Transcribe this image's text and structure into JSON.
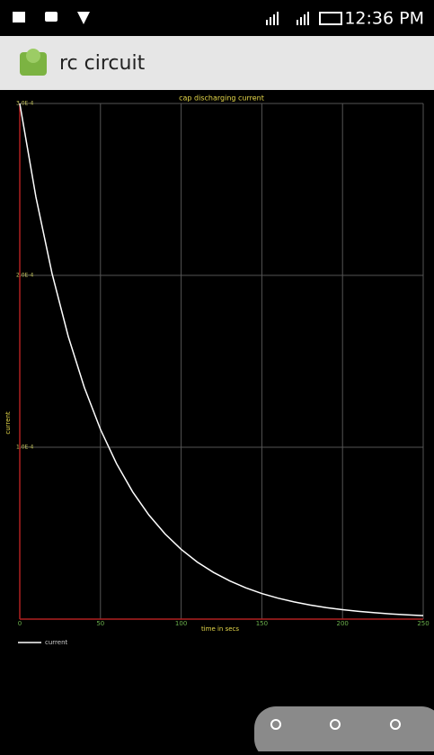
{
  "status_bar": {
    "time": "12:36 PM"
  },
  "app_bar": {
    "title": "rc circuit"
  },
  "chart_data": {
    "type": "line",
    "title": "cap discharging current",
    "x_label": "time in secs",
    "y_label": "current",
    "x": [
      0,
      10,
      20,
      30,
      40,
      50,
      60,
      70,
      80,
      90,
      100,
      110,
      120,
      130,
      140,
      150,
      160,
      170,
      180,
      190,
      200,
      210,
      220,
      230,
      240,
      250
    ],
    "series": [
      {
        "name": "current",
        "color": "#ffffff",
        "values": [
          0.0003,
          0.0002456,
          0.0002011,
          0.0001646,
          0.0001348,
          0.0001104,
          9.04e-05,
          7.4e-05,
          6.06e-05,
          4.96e-05,
          4.06e-05,
          3.32e-05,
          2.72e-05,
          2.23e-05,
          1.82e-05,
          1.49e-05,
          1.22e-05,
          1e-05,
          8.2e-06,
          6.7e-06,
          5.5e-06,
          4.5e-06,
          3.7e-06,
          3e-06,
          2.5e-06,
          2e-06
        ]
      }
    ],
    "xlim": [
      0,
      250
    ],
    "ylim": [
      0,
      0.0003
    ],
    "xticks": [
      0,
      50,
      100,
      150,
      200,
      250
    ],
    "yticks": [
      {
        "value": 0.0001,
        "label": "1.0E-4"
      },
      {
        "value": 0.0002,
        "label": "2.0E-4"
      },
      {
        "value": 0.0003,
        "label": "3.0E-4"
      }
    ],
    "grid": true,
    "axis_color": "#b02020",
    "grid_color": "#555555"
  }
}
